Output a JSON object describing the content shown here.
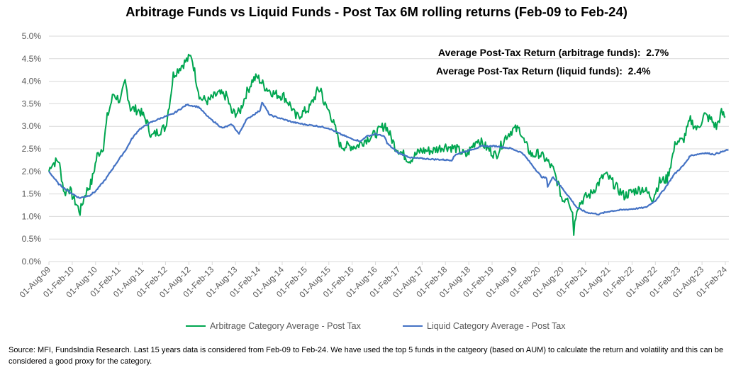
{
  "chart_data": {
    "type": "line",
    "title": "Arbitrage Funds vs Liquid Funds - Post Tax 6M rolling returns (Feb-09 to Feb-24)",
    "xlabel": "",
    "ylabel": "",
    "x_unit": "months since 01-Aug-09",
    "x_range": [
      0,
      175
    ],
    "ylim": [
      0,
      5
    ],
    "y_ticks": [
      "0.0%",
      "0.5%",
      "1.0%",
      "1.5%",
      "2.0%",
      "2.5%",
      "3.0%",
      "3.5%",
      "4.0%",
      "4.5%",
      "5.0%"
    ],
    "x_ticks": [
      "01-Aug-09",
      "01-Feb-10",
      "01-Aug-10",
      "01-Feb-11",
      "01-Aug-11",
      "01-Feb-12",
      "01-Aug-12",
      "01-Feb-13",
      "01-Aug-13",
      "01-Feb-14",
      "01-Aug-14",
      "01-Feb-15",
      "01-Aug-15",
      "01-Feb-16",
      "01-Aug-16",
      "01-Feb-17",
      "01-Aug-17",
      "01-Feb-18",
      "01-Aug-18",
      "01-Feb-19",
      "01-Aug-19",
      "01-Feb-20",
      "01-Aug-20",
      "01-Feb-21",
      "01-Aug-21",
      "01-Feb-22",
      "01-Aug-22",
      "01-Feb-23",
      "01-Aug-23",
      "01-Feb-24"
    ],
    "grid": true,
    "legend_position": "bottom",
    "series": [
      {
        "name": "Arbitrage Category Average - Post Tax",
        "color": "#00a650",
        "x": [
          0,
          0.5,
          2.5,
          4,
          5,
          8,
          9.3,
          11,
          12.4,
          14,
          15,
          16.6,
          18.4,
          19.6,
          21,
          23.3,
          25,
          26.4,
          28,
          30,
          31.2,
          32,
          33.6,
          35.4,
          36.7,
          38,
          38.9,
          41,
          43.4,
          45.8,
          47,
          49,
          50.7,
          52.5,
          53.7,
          55.5,
          58,
          60.4,
          62.2,
          63.5,
          65.3,
          67,
          69,
          70,
          70.8,
          72.3,
          73.7,
          75,
          77.4,
          79.2,
          81.7,
          84,
          86.5,
          89,
          92.7,
          95.6,
          98.7,
          101.8,
          104.7,
          107.3,
          110.2,
          112.8,
          115,
          117.5,
          119.3,
          121.2,
          122.4,
          124.3,
          126,
          128,
          129.7,
          131,
          132.1,
          133.4,
          134.7,
          135,
          135.8,
          137.6,
          139.4,
          141.2,
          143,
          144.3,
          146.2,
          148,
          150.4,
          152.9,
          155.3,
          157.1,
          159,
          160.2,
          161.3,
          163.1,
          165,
          166.8,
          168.6,
          170.4,
          171.7,
          173,
          174
        ],
        "y": [
          2.0,
          2.15,
          2.25,
          1.5,
          1.65,
          1.1,
          1.5,
          1.77,
          2.35,
          2.56,
          3.2,
          3.72,
          3.56,
          3.98,
          3.4,
          3.35,
          3.14,
          2.77,
          2.88,
          2.98,
          3.62,
          4.14,
          4.3,
          4.46,
          4.56,
          3.98,
          3.62,
          3.56,
          3.72,
          3.67,
          3.3,
          3.3,
          3.72,
          4.04,
          4.09,
          3.88,
          3.72,
          3.67,
          3.46,
          3.2,
          3.3,
          3.4,
          3.77,
          3.83,
          3.5,
          3.3,
          2.93,
          2.56,
          2.56,
          2.56,
          2.72,
          2.83,
          3.04,
          2.56,
          2.25,
          2.46,
          2.46,
          2.56,
          2.51,
          2.35,
          2.72,
          2.51,
          2.35,
          2.77,
          2.93,
          2.93,
          2.62,
          2.35,
          2.4,
          2.25,
          2.04,
          1.72,
          1.35,
          1.46,
          1.09,
          0.67,
          1.2,
          1.4,
          1.5,
          1.72,
          1.93,
          1.83,
          1.62,
          1.46,
          1.56,
          1.62,
          1.4,
          1.77,
          1.83,
          2.25,
          2.67,
          2.67,
          3.14,
          2.93,
          3.25,
          3.14,
          2.98,
          3.3,
          3.2
        ]
      },
      {
        "name": "Liquid Category Average - Post Tax",
        "color": "#4472c4",
        "x": [
          0,
          2.5,
          5,
          7.8,
          10.3,
          12,
          14.6,
          17,
          20,
          21.3,
          23.2,
          26.3,
          29.3,
          31.8,
          35.5,
          38.5,
          41,
          44.6,
          47.1,
          48.9,
          50.7,
          52.5,
          54.3,
          54.8,
          56.8,
          59.8,
          62.8,
          65.8,
          68.8,
          71.9,
          74.9,
          77.9,
          80.3,
          81.5,
          84,
          86.4,
          87,
          89.8,
          93.3,
          98.7,
          103.6,
          104.7,
          107.8,
          111.5,
          115,
          118.8,
          121.8,
          124.3,
          126.7,
          128,
          128.3,
          129.7,
          132.1,
          134,
          135.8,
          138.3,
          141.4,
          144.4,
          150.4,
          153.5,
          156,
          158.4,
          160.8,
          163.3,
          165,
          168.6,
          171.1,
          174.8
        ],
        "y": [
          2.0,
          1.72,
          1.56,
          1.41,
          1.46,
          1.56,
          1.83,
          2.14,
          2.51,
          2.72,
          2.93,
          3.09,
          3.2,
          3.27,
          3.48,
          3.43,
          3.2,
          2.96,
          3.04,
          2.83,
          3.14,
          3.25,
          3.35,
          3.54,
          3.25,
          3.17,
          3.09,
          3.04,
          3.01,
          2.96,
          2.83,
          2.72,
          2.67,
          2.77,
          2.83,
          2.77,
          2.62,
          2.41,
          2.3,
          2.27,
          2.25,
          2.38,
          2.46,
          2.56,
          2.56,
          2.51,
          2.41,
          2.14,
          1.88,
          1.85,
          1.67,
          1.88,
          1.62,
          1.41,
          1.2,
          1.09,
          1.05,
          1.12,
          1.17,
          1.2,
          1.35,
          1.62,
          1.93,
          2.14,
          2.35,
          2.41,
          2.38,
          2.48
        ]
      }
    ],
    "annotations": [
      "Average Post-Tax Return (arbitrage funds):  2.7%",
      "Average Post-Tax Return (liquid funds):  2.4%"
    ]
  },
  "footer": {
    "source": "Source: MFI, FundsIndia Research. Last 15 years data is considered from Feb-09 to Feb-24. We have used the top 5 funds in the catgeory (based on AUM) to calculate the return and volatility and this can be considered a good proxy for the category."
  }
}
